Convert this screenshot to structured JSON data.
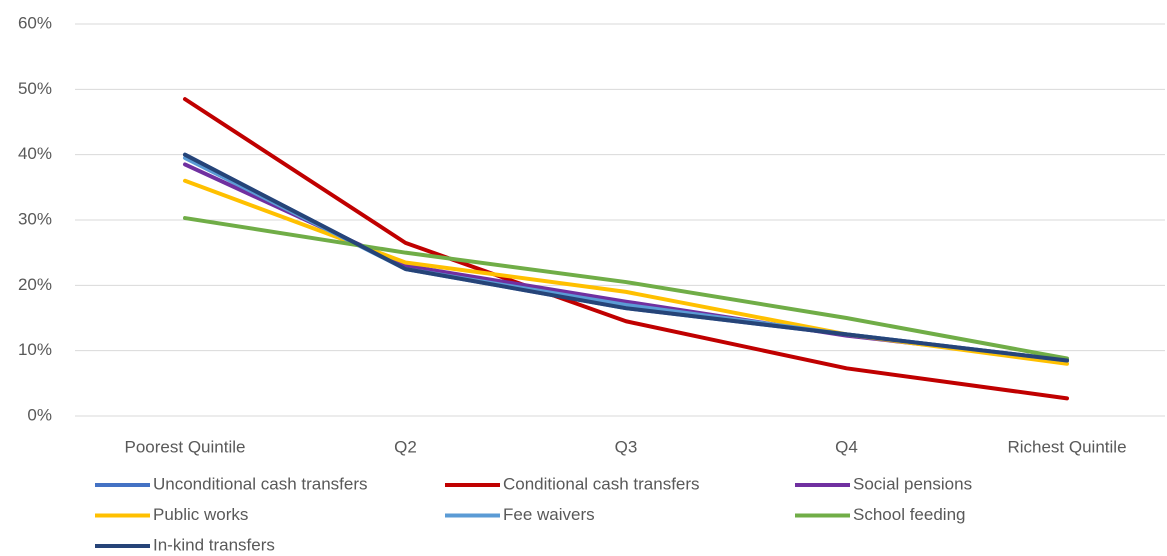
{
  "chart_data": {
    "type": "line",
    "categories": [
      "Poorest Quintile",
      "Q2",
      "Q3",
      "Q4",
      "Richest Quintile"
    ],
    "series": [
      {
        "name": "Unconditional cash transfers",
        "color": "#4472c4",
        "values": [
          40,
          22.5,
          16.5,
          12.5,
          8.5
        ]
      },
      {
        "name": "Conditional cash transfers",
        "color": "#c00000",
        "values": [
          48.5,
          26.5,
          14.5,
          7.3,
          2.7
        ]
      },
      {
        "name": "Social pensions",
        "color": "#7030a0",
        "values": [
          38.5,
          23,
          17.5,
          12.3,
          8.5
        ]
      },
      {
        "name": "Public works",
        "color": "#ffc000",
        "values": [
          36,
          23.5,
          19,
          12.5,
          8
        ]
      },
      {
        "name": "Fee waivers",
        "color": "#5b9bd5",
        "values": [
          39.5,
          22.5,
          17,
          12.5,
          8.5
        ]
      },
      {
        "name": "School feeding",
        "color": "#70ad47",
        "values": [
          30.3,
          25,
          20.5,
          15,
          8.8
        ]
      },
      {
        "name": "In-kind transfers",
        "color": "#264478",
        "values": [
          40,
          22.5,
          16.5,
          12.5,
          8.5
        ]
      }
    ],
    "ylim": [
      0,
      60
    ],
    "yticks": [
      {
        "value": 0,
        "label": "0%"
      },
      {
        "value": 10,
        "label": "10%"
      },
      {
        "value": 20,
        "label": "20%"
      },
      {
        "value": 30,
        "label": "30%"
      },
      {
        "value": 40,
        "label": "40%"
      },
      {
        "value": 50,
        "label": "50%"
      },
      {
        "value": 60,
        "label": "60%"
      }
    ],
    "grid": true,
    "legend": "bottom"
  }
}
